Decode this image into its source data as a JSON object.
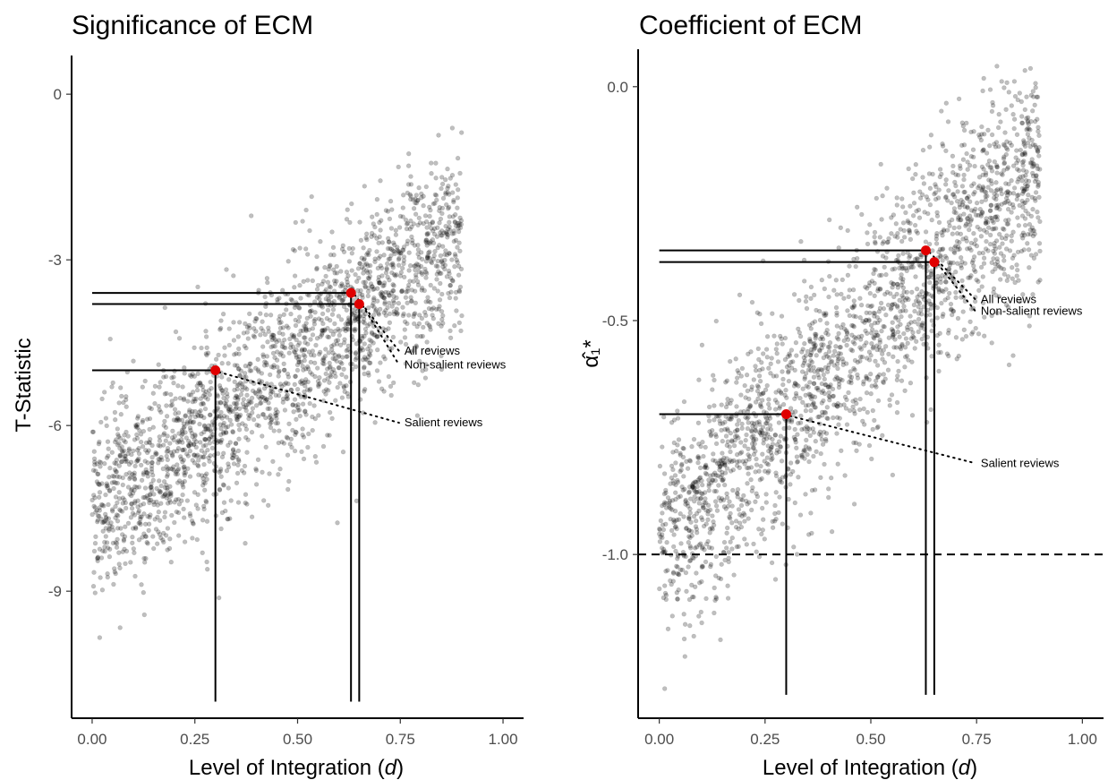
{
  "chart_data": [
    {
      "type": "scatter",
      "title": "Significance of ECM",
      "xlabel": "Level of Integration (",
      "xlabel_var": "d",
      "xlabel_end": ")",
      "ylabel": "T-Statistic",
      "xlim": [
        -0.05,
        1.05
      ],
      "ylim": [
        -11.3,
        0.7
      ],
      "xticks": [
        {
          "value": 0,
          "label": "0.00"
        },
        {
          "value": 0.25,
          "label": "0.25"
        },
        {
          "value": 0.5,
          "label": "0.50"
        },
        {
          "value": 0.75,
          "label": "0.75"
        },
        {
          "value": 1,
          "label": "1.00"
        }
      ],
      "yticks": [
        {
          "value": 0,
          "label": "0"
        },
        {
          "value": -3,
          "label": "-3"
        },
        {
          "value": -6,
          "label": "-6"
        },
        {
          "value": -9,
          "label": "-9"
        }
      ],
      "simulated_cloud": {
        "description_free": true,
        "x_range": [
          0,
          0.9
        ],
        "y_at_x0": -7.6,
        "slope": 5.7,
        "spread": 0.85,
        "n_points": 2200,
        "point_color": "#000000",
        "point_opacity": 0.25
      },
      "highlighted_points": [
        {
          "x": 0.63,
          "y": -3.6,
          "y_floor": -11.0,
          "label": "All reviews",
          "label_x": 0.76,
          "label_y": -4.65
        },
        {
          "x": 0.65,
          "y": -3.8,
          "y_floor": -11.0,
          "label": "Non-salient reviews",
          "label_x": 0.76,
          "label_y": -4.9
        },
        {
          "x": 0.3,
          "y": -5.0,
          "y_floor": -11.0,
          "label": "Salient reviews",
          "label_x": 0.76,
          "label_y": -5.95
        }
      ],
      "highlight_color": "#e00000",
      "grid": false,
      "reference_line": null
    },
    {
      "type": "scatter",
      "title": "Coefficient of ECM",
      "xlabel": "Level of Integration (",
      "xlabel_var": "d",
      "xlabel_end": ")",
      "ylabel": "α̂₁*",
      "xlim": [
        -0.05,
        1.05
      ],
      "ylim": [
        -1.35,
        0.08
      ],
      "xticks": [
        {
          "value": 0,
          "label": "0.00"
        },
        {
          "value": 0.25,
          "label": "0.25"
        },
        {
          "value": 0.5,
          "label": "0.50"
        },
        {
          "value": 0.75,
          "label": "0.75"
        },
        {
          "value": 1,
          "label": "1.00"
        }
      ],
      "yticks": [
        {
          "value": 0,
          "label": "0.0"
        },
        {
          "value": -0.5,
          "label": "-0.5"
        },
        {
          "value": -1,
          "label": "-1.0"
        }
      ],
      "simulated_cloud": {
        "x_range": [
          0,
          0.9
        ],
        "y_at_x0": -0.98,
        "slope": 0.92,
        "spread": 0.12,
        "n_points": 2200,
        "point_color": "#000000",
        "point_opacity": 0.25
      },
      "highlighted_points": [
        {
          "x": 0.63,
          "y": -0.35,
          "y_floor": -1.3,
          "label": "All reviews",
          "label_x": 0.76,
          "label_y": -0.455
        },
        {
          "x": 0.65,
          "y": -0.375,
          "y_floor": -1.3,
          "label": "Non-salient reviews",
          "label_x": 0.76,
          "label_y": -0.48
        },
        {
          "x": 0.3,
          "y": -0.7,
          "y_floor": -1.3,
          "label": "Salient reviews",
          "label_x": 0.76,
          "label_y": -0.805
        }
      ],
      "highlight_color": "#e00000",
      "grid": false,
      "reference_line": {
        "y": -1.0,
        "style": "dashed"
      }
    }
  ]
}
